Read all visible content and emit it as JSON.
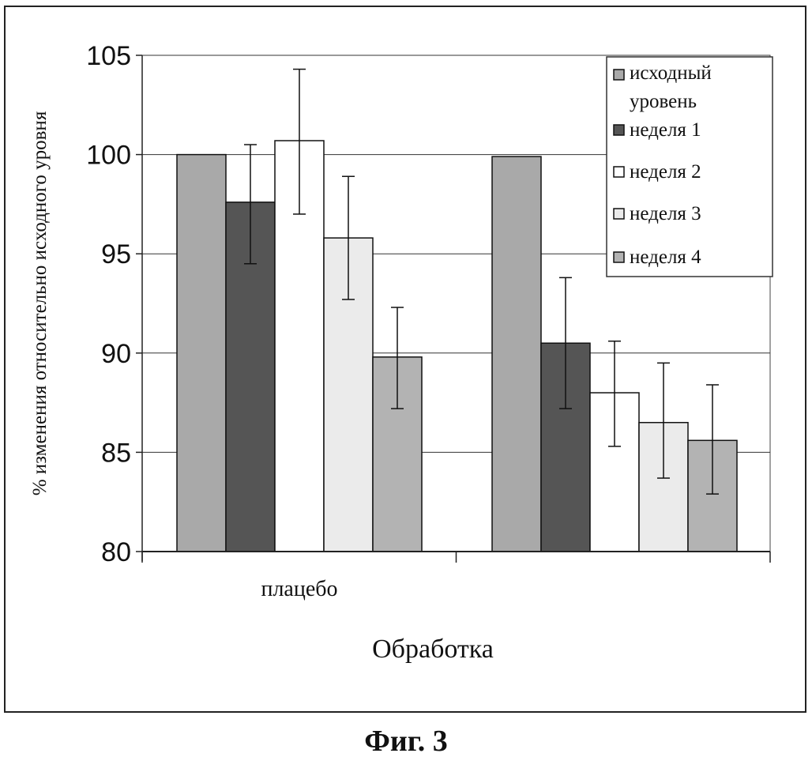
{
  "caption": "Фиг. 3",
  "chart_data": {
    "type": "bar",
    "title": "",
    "xlabel": "Обработка",
    "ylabel": "% изменения относительно исходного уровня",
    "ylim": [
      80,
      105
    ],
    "yticks": [
      80,
      85,
      90,
      95,
      100,
      105
    ],
    "grid": true,
    "legend_position": "top-right",
    "categories": [
      "плацебо",
      ""
    ],
    "series": [
      {
        "name": "исходный уровень",
        "color": "#a9a9a9",
        "values": [
          100.0,
          99.9
        ],
        "err_low": [
          100.0,
          99.9
        ],
        "err_high": [
          100.0,
          99.9
        ],
        "has_error": false
      },
      {
        "name": "неделя 1",
        "color": "#555555",
        "values": [
          97.6,
          90.5
        ],
        "err_low": [
          94.5,
          87.2
        ],
        "err_high": [
          100.5,
          93.8
        ],
        "has_error": true
      },
      {
        "name": "неделя 2",
        "color": "#ffffff",
        "values": [
          100.7,
          88.0
        ],
        "err_low": [
          97.0,
          85.3
        ],
        "err_high": [
          104.3,
          90.6
        ],
        "has_error": true
      },
      {
        "name": "неделя 3",
        "color": "#ebebeb",
        "values": [
          95.8,
          86.5
        ],
        "err_low": [
          92.7,
          83.7
        ],
        "err_high": [
          98.9,
          89.5
        ],
        "has_error": true
      },
      {
        "name": "неделя 4",
        "color": "#b3b3b3",
        "values": [
          89.8,
          85.6
        ],
        "err_low": [
          87.2,
          82.9
        ],
        "err_high": [
          92.3,
          88.4
        ],
        "has_error": true
      }
    ]
  }
}
